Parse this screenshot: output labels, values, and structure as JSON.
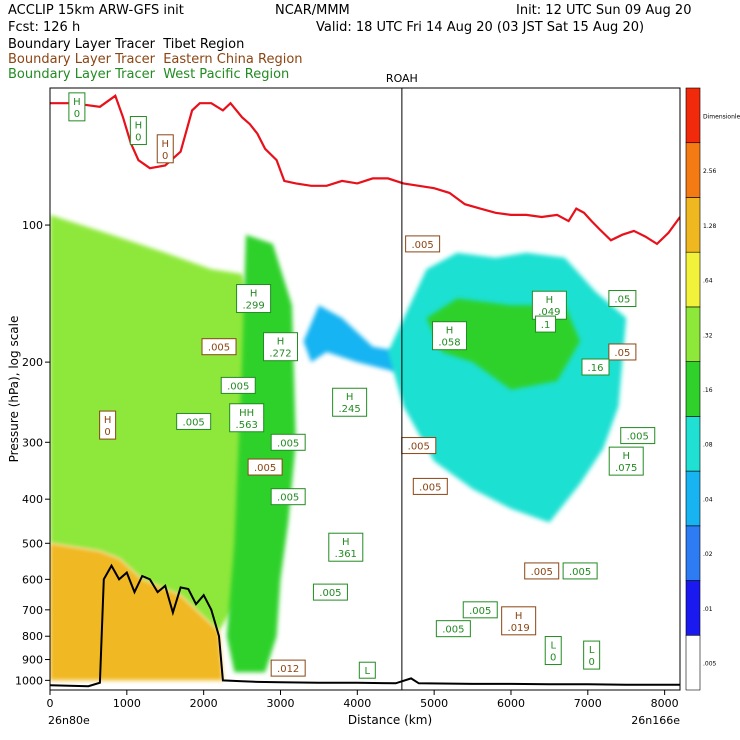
{
  "header": {
    "model": "ACCLIP 15km ARW-GFS init",
    "org": "NCAR/MMM",
    "init": "Init: 12 UTC Sun 09 Aug 20",
    "fcst": "Fcst:  126 h",
    "valid": "Valid: 18 UTC Fri 14 Aug 20 (03 JST Sat 15 Aug 20)",
    "tracers": [
      {
        "prefix": "Boundary Layer Tracer",
        "region": "Tibet Region",
        "color": "#000000"
      },
      {
        "prefix": "Boundary Layer Tracer",
        "region": "Eastern China Region",
        "color": "#8b4513"
      },
      {
        "prefix": "Boundary Layer Tracer",
        "region": "West Pacific Region",
        "color": "#228b22"
      }
    ]
  },
  "chart_data": {
    "type": "heatmap",
    "title": "",
    "xlabel": "Distance (km)",
    "ylabel": "Pressure (hPa), log scale",
    "x_range": [
      0,
      8200
    ],
    "y_range_hpa": [
      1050,
      50
    ],
    "y_scale": "log",
    "x_ticks": [
      0,
      1000,
      2000,
      3000,
      4000,
      5000,
      6000,
      7000,
      8000
    ],
    "y_ticks": [
      100,
      200,
      300,
      400,
      500,
      600,
      700,
      800,
      900,
      1000
    ],
    "x_endpoints": {
      "left": "26n80e",
      "right": "26n166e"
    },
    "marker": {
      "label": "ROAH",
      "x_km": 4580
    },
    "colorbar": {
      "levels": [
        ".005",
        ".01",
        ".02",
        ".04",
        ".08",
        ".16",
        ".32",
        ".64",
        "1.28",
        "2.56",
        "Dimensionless"
      ],
      "colors": [
        "#ffffff",
        "#1a1af0",
        "#2e7cf4",
        "#18b4f2",
        "#1fe0d2",
        "#2fd12a",
        "#8ee83a",
        "#f2f23a",
        "#f0b820",
        "#f47a14",
        "#f02a0a"
      ]
    },
    "tropopause_line": {
      "color": "#e8101a",
      "points": [
        [
          0,
          54
        ],
        [
          300,
          54
        ],
        [
          650,
          55
        ],
        [
          850,
          52
        ],
        [
          950,
          58
        ],
        [
          1050,
          66
        ],
        [
          1150,
          72
        ],
        [
          1300,
          75
        ],
        [
          1500,
          74
        ],
        [
          1700,
          69
        ],
        [
          1850,
          56
        ],
        [
          1950,
          54
        ],
        [
          2100,
          54
        ],
        [
          2250,
          56
        ],
        [
          2350,
          54
        ],
        [
          2500,
          58
        ],
        [
          2600,
          60
        ],
        [
          2700,
          63
        ],
        [
          2800,
          68
        ],
        [
          2950,
          72
        ],
        [
          3050,
          80
        ],
        [
          3200,
          81
        ],
        [
          3400,
          82
        ],
        [
          3600,
          82
        ],
        [
          3800,
          80
        ],
        [
          4000,
          81
        ],
        [
          4200,
          79
        ],
        [
          4400,
          79
        ],
        [
          4600,
          81
        ],
        [
          4800,
          82
        ],
        [
          5000,
          83
        ],
        [
          5200,
          85
        ],
        [
          5400,
          90
        ],
        [
          5600,
          92
        ],
        [
          5800,
          94
        ],
        [
          6000,
          95
        ],
        [
          6200,
          95
        ],
        [
          6400,
          96
        ],
        [
          6600,
          95
        ],
        [
          6750,
          98
        ],
        [
          6850,
          92
        ],
        [
          6950,
          94
        ],
        [
          7050,
          98
        ],
        [
          7150,
          102
        ],
        [
          7300,
          108
        ],
        [
          7450,
          105
        ],
        [
          7600,
          103
        ],
        [
          7750,
          106
        ],
        [
          7900,
          110
        ],
        [
          8050,
          104
        ],
        [
          8200,
          96
        ]
      ]
    },
    "terrain_line": {
      "color": "#000000",
      "points": [
        [
          0,
          1025
        ],
        [
          500,
          1030
        ],
        [
          650,
          1012
        ],
        [
          700,
          600
        ],
        [
          800,
          560
        ],
        [
          900,
          600
        ],
        [
          1000,
          580
        ],
        [
          1100,
          640
        ],
        [
          1200,
          590
        ],
        [
          1300,
          600
        ],
        [
          1400,
          640
        ],
        [
          1500,
          620
        ],
        [
          1600,
          710
        ],
        [
          1700,
          625
        ],
        [
          1800,
          630
        ],
        [
          1900,
          680
        ],
        [
          2000,
          650
        ],
        [
          2100,
          700
        ],
        [
          2200,
          800
        ],
        [
          2250,
          1000
        ],
        [
          2500,
          1005
        ],
        [
          2700,
          1008
        ],
        [
          3000,
          1010
        ],
        [
          3500,
          1012
        ],
        [
          4000,
          1012
        ],
        [
          4500,
          1015
        ],
        [
          4700,
          990
        ],
        [
          4800,
          1015
        ],
        [
          5500,
          1018
        ],
        [
          6000,
          1018
        ],
        [
          6500,
          1020
        ],
        [
          7000,
          1020
        ],
        [
          7500,
          1022
        ],
        [
          8200,
          1022
        ]
      ]
    },
    "regions": [
      {
        "name": "tibet-plume",
        "level": "0.32-0.64",
        "points": [
          [
            0,
            95
          ],
          [
            800,
            105
          ],
          [
            1500,
            115
          ],
          [
            2100,
            125
          ],
          [
            2500,
            128
          ],
          [
            2600,
            150
          ],
          [
            2600,
            600
          ],
          [
            2200,
            780
          ],
          [
            1700,
            650
          ],
          [
            1200,
            600
          ],
          [
            900,
            540
          ],
          [
            650,
            520
          ],
          [
            0,
            500
          ]
        ]
      },
      {
        "name": "tibet-near-surface",
        "level": "1.28-2.56",
        "points": [
          [
            0,
            500
          ],
          [
            650,
            520
          ],
          [
            900,
            540
          ],
          [
            1200,
            600
          ],
          [
            1700,
            650
          ],
          [
            2200,
            780
          ],
          [
            2250,
            1000
          ],
          [
            0,
            1000
          ]
        ]
      },
      {
        "name": "eastern-china-column",
        "level": "0.16-0.32",
        "points": [
          [
            2550,
            105
          ],
          [
            2900,
            110
          ],
          [
            3150,
            150
          ],
          [
            3200,
            300
          ],
          [
            3100,
            450
          ],
          [
            3000,
            600
          ],
          [
            2950,
            800
          ],
          [
            2800,
            960
          ],
          [
            2400,
            960
          ],
          [
            2300,
            800
          ],
          [
            2400,
            500
          ],
          [
            2500,
            200
          ]
        ]
      },
      {
        "name": "upper-tongue",
        "level": "0.04-0.08",
        "points": [
          [
            3300,
            180
          ],
          [
            3500,
            150
          ],
          [
            3800,
            160
          ],
          [
            4200,
            185
          ],
          [
            4600,
            190
          ],
          [
            4500,
            210
          ],
          [
            4000,
            200
          ],
          [
            3600,
            190
          ],
          [
            3400,
            200
          ]
        ]
      },
      {
        "name": "pacific-anticyclone",
        "level": "0.08-0.16",
        "points": [
          [
            4400,
            190
          ],
          [
            4900,
            125
          ],
          [
            5300,
            115
          ],
          [
            5800,
            118
          ],
          [
            6200,
            115
          ],
          [
            6700,
            118
          ],
          [
            7100,
            140
          ],
          [
            7500,
            160
          ],
          [
            7400,
            250
          ],
          [
            7200,
            310
          ],
          [
            6900,
            370
          ],
          [
            6500,
            450
          ],
          [
            6000,
            420
          ],
          [
            5500,
            380
          ],
          [
            5000,
            330
          ],
          [
            4600,
            250
          ]
        ]
      },
      {
        "name": "pacific-core",
        "level": "0.16-0.32",
        "points": [
          [
            4900,
            160
          ],
          [
            5300,
            145
          ],
          [
            6000,
            150
          ],
          [
            6700,
            150
          ],
          [
            6900,
            180
          ],
          [
            6600,
            220
          ],
          [
            6000,
            230
          ],
          [
            5500,
            200
          ],
          [
            5100,
            190
          ]
        ]
      }
    ],
    "contour_labels": [
      {
        "text": "H",
        "value": "0",
        "x_km": 350,
        "y_hpa": 55,
        "tracer": "West Pacific"
      },
      {
        "text": "H",
        "value": "0",
        "x_km": 1150,
        "y_hpa": 62,
        "tracer": "West Pacific"
      },
      {
        "text": "H",
        "value": "0",
        "x_km": 1500,
        "y_hpa": 68,
        "tracer": "Eastern China"
      },
      {
        "text": "H",
        "value": "0",
        "x_km": 750,
        "y_hpa": 275,
        "tracer": "Eastern China"
      },
      {
        "text": "H",
        "value": ".299",
        "x_km": 2650,
        "y_hpa": 145,
        "tracer": "West Pacific"
      },
      {
        "text": "H",
        "value": ".272",
        "x_km": 3000,
        "y_hpa": 185,
        "tracer": "West Pacific"
      },
      {
        "text": "HH",
        "value": ".563",
        "x_km": 2560,
        "y_hpa": 265,
        "tracer": "West Pacific"
      },
      {
        "text": "",
        "value": ".005",
        "x_km": 2200,
        "y_hpa": 185,
        "tracer": "Eastern China"
      },
      {
        "text": "",
        "value": ".005",
        "x_km": 2450,
        "y_hpa": 225,
        "tracer": "West Pacific"
      },
      {
        "text": "",
        "value": ".005",
        "x_km": 1870,
        "y_hpa": 270,
        "tracer": "West Pacific"
      },
      {
        "text": "",
        "value": ".005",
        "x_km": 3100,
        "y_hpa": 300,
        "tracer": "West Pacific"
      },
      {
        "text": "",
        "value": ".005",
        "x_km": 2800,
        "y_hpa": 340,
        "tracer": "Eastern China"
      },
      {
        "text": "",
        "value": ".005",
        "x_km": 3100,
        "y_hpa": 395,
        "tracer": "West Pacific"
      },
      {
        "text": "H",
        "value": ".245",
        "x_km": 3900,
        "y_hpa": 245,
        "tracer": "West Pacific"
      },
      {
        "text": "H",
        "value": ".361",
        "x_km": 3850,
        "y_hpa": 510,
        "tracer": "West Pacific"
      },
      {
        "text": "",
        "value": ".005",
        "x_km": 3650,
        "y_hpa": 640,
        "tracer": "West Pacific"
      },
      {
        "text": "",
        "value": ".012",
        "x_km": 3100,
        "y_hpa": 940,
        "tracer": "Eastern China"
      },
      {
        "text": "L",
        "value": "",
        "x_km": 4130,
        "y_hpa": 950,
        "tracer": "West Pacific"
      },
      {
        "text": "",
        "value": ".005",
        "x_km": 4850,
        "y_hpa": 110,
        "tracer": "Eastern China"
      },
      {
        "text": "H",
        "value": ".058",
        "x_km": 5200,
        "y_hpa": 175,
        "tracer": "West Pacific"
      },
      {
        "text": "",
        "value": ".005",
        "x_km": 4800,
        "y_hpa": 305,
        "tracer": "Eastern China"
      },
      {
        "text": "",
        "value": ".005",
        "x_km": 4950,
        "y_hpa": 375,
        "tracer": "Eastern China"
      },
      {
        "text": "H",
        "value": ".049",
        "x_km": 6500,
        "y_hpa": 150,
        "tracer": "West Pacific"
      },
      {
        "text": "",
        "value": ".1",
        "x_km": 6450,
        "y_hpa": 165,
        "tracer": "West Pacific"
      },
      {
        "text": "",
        "value": ".05",
        "x_km": 7450,
        "y_hpa": 145,
        "tracer": "West Pacific"
      },
      {
        "text": "",
        "value": ".05",
        "x_km": 7450,
        "y_hpa": 190,
        "tracer": "Eastern China"
      },
      {
        "text": "",
        "value": ".16",
        "x_km": 7100,
        "y_hpa": 205,
        "tracer": "West Pacific"
      },
      {
        "text": "",
        "value": ".005",
        "x_km": 7650,
        "y_hpa": 290,
        "tracer": "West Pacific"
      },
      {
        "text": "H",
        "value": ".075",
        "x_km": 7500,
        "y_hpa": 330,
        "tracer": "West Pacific"
      },
      {
        "text": "",
        "value": ".005",
        "x_km": 6400,
        "y_hpa": 575,
        "tracer": "Eastern China"
      },
      {
        "text": "",
        "value": ".005",
        "x_km": 6900,
        "y_hpa": 575,
        "tracer": "West Pacific"
      },
      {
        "text": "",
        "value": ".005",
        "x_km": 5600,
        "y_hpa": 700,
        "tracer": "West Pacific"
      },
      {
        "text": "",
        "value": ".005",
        "x_km": 5250,
        "y_hpa": 770,
        "tracer": "West Pacific"
      },
      {
        "text": "H",
        "value": ".019",
        "x_km": 6100,
        "y_hpa": 740,
        "tracer": "Eastern China"
      },
      {
        "text": "L",
        "value": "0",
        "x_km": 6550,
        "y_hpa": 860,
        "tracer": "West Pacific"
      },
      {
        "text": "L",
        "value": "0",
        "x_km": 7050,
        "y_hpa": 880,
        "tracer": "West Pacific"
      }
    ]
  }
}
